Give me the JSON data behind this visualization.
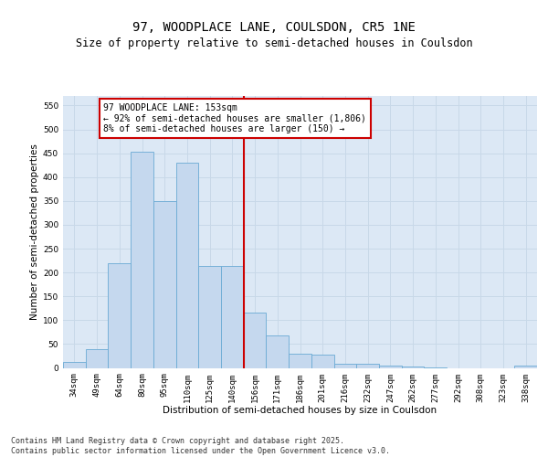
{
  "title": "97, WOODPLACE LANE, COULSDON, CR5 1NE",
  "subtitle": "Size of property relative to semi-detached houses in Coulsdon",
  "xlabel": "Distribution of semi-detached houses by size in Coulsdon",
  "ylabel": "Number of semi-detached properties",
  "categories": [
    "34sqm",
    "49sqm",
    "64sqm",
    "80sqm",
    "95sqm",
    "110sqm",
    "125sqm",
    "140sqm",
    "156sqm",
    "171sqm",
    "186sqm",
    "201sqm",
    "216sqm",
    "232sqm",
    "247sqm",
    "262sqm",
    "277sqm",
    "292sqm",
    "308sqm",
    "323sqm",
    "338sqm"
  ],
  "values": [
    12,
    40,
    220,
    453,
    350,
    430,
    213,
    213,
    115,
    68,
    30,
    27,
    9,
    8,
    4,
    2,
    1,
    0,
    0,
    0,
    4
  ],
  "bar_color": "#c5d8ee",
  "bar_edge_color": "#6aaad4",
  "vline_color": "#cc0000",
  "annotation_text": "97 WOODPLACE LANE: 153sqm\n← 92% of semi-detached houses are smaller (1,806)\n8% of semi-detached houses are larger (150) →",
  "annotation_box_color": "#ffffff",
  "annotation_box_edge": "#cc0000",
  "ylim": [
    0,
    570
  ],
  "yticks": [
    0,
    50,
    100,
    150,
    200,
    250,
    300,
    350,
    400,
    450,
    500,
    550
  ],
  "background_color": "#dce8f5",
  "grid_color": "#c8d8e8",
  "footer": "Contains HM Land Registry data © Crown copyright and database right 2025.\nContains public sector information licensed under the Open Government Licence v3.0.",
  "title_fontsize": 10,
  "subtitle_fontsize": 8.5,
  "label_fontsize": 7.5,
  "tick_fontsize": 6.5,
  "footer_fontsize": 6,
  "annotation_fontsize": 7
}
